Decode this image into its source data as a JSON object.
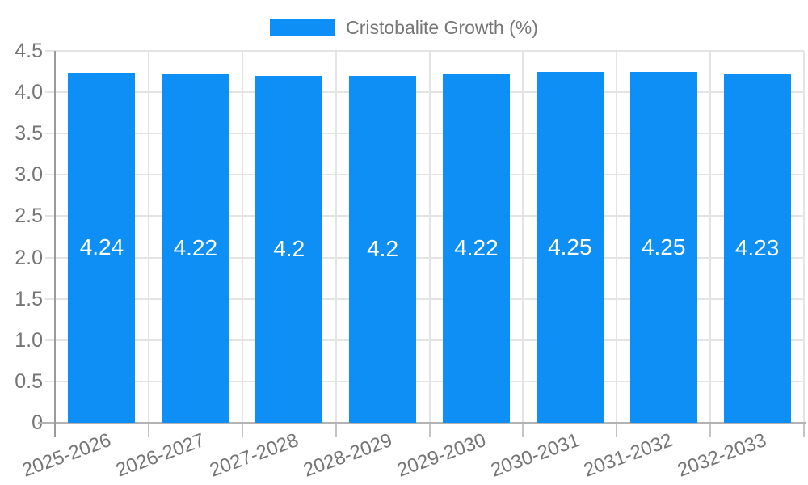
{
  "chart_data": {
    "type": "bar",
    "title": "Cristobalite Growth (%)",
    "legend": {
      "label": "Cristobalite Growth (%)",
      "position": "top-center"
    },
    "categories": [
      "2025-2026",
      "2026-2027",
      "2027-2028",
      "2028-2029",
      "2029-2030",
      "2030-2031",
      "2031-2032",
      "2032-2033"
    ],
    "values": [
      4.24,
      4.22,
      4.2,
      4.2,
      4.22,
      4.25,
      4.25,
      4.23
    ],
    "bar_labels": [
      "4.24",
      "4.22",
      "4.2",
      "4.2",
      "4.22",
      "4.25",
      "4.25",
      "4.23"
    ],
    "xlabel": "",
    "ylabel": "",
    "ylim": [
      0,
      4.5
    ],
    "ytick_step": 0.5,
    "yticks": [
      "0",
      "0.5",
      "1.0",
      "1.5",
      "2.0",
      "2.5",
      "3.0",
      "3.5",
      "4.0",
      "4.5"
    ],
    "grid": "on",
    "colors": {
      "bar": "#0d8ff5",
      "bar_label": "#ffffff",
      "axis_label": "#757575",
      "gridline": "#e4e4e4",
      "axis_line": "#9a9a9a",
      "baseline": "#b3b3b3",
      "background": "#ffffff"
    }
  }
}
